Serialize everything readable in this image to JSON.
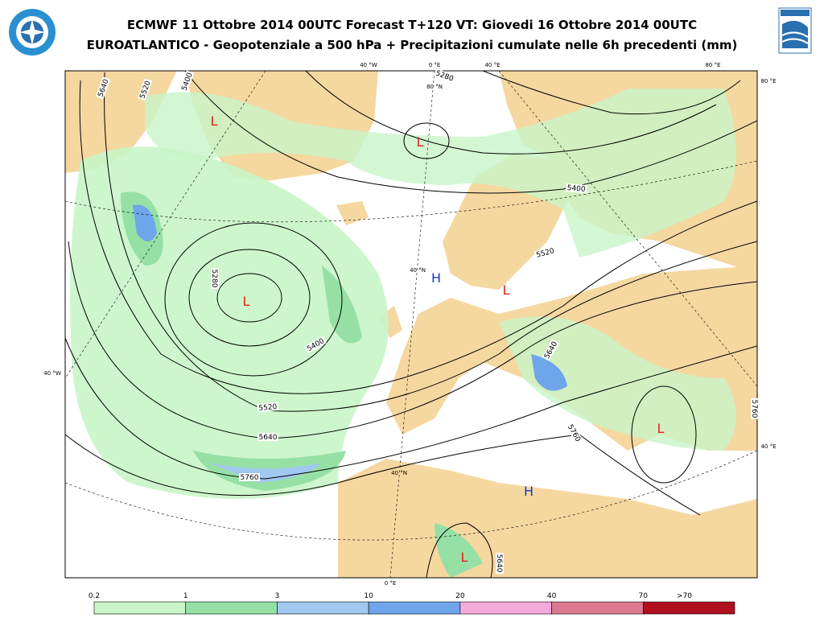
{
  "header": {
    "title_line1": "ECMWF 11 Ottobre 2014 00UTC Forecast T+120 VT: Giovedi 16 Ottobre 2014 00UTC",
    "title_line2": "EUROATLANTICO - Geopotenziale a 500 hPa + Precipitazioni cumulate nelle 6h precedenti (mm)"
  },
  "map": {
    "graticule_labels": [
      "40 °W",
      "0 °E",
      "40 °E",
      "80 °E",
      "80 °E",
      "80 °N",
      "40 °N",
      "40 °W",
      "40 °E",
      "40 °N",
      "0 °E"
    ],
    "contour_labels": [
      "5640",
      "5520",
      "5400",
      "5280",
      "5400",
      "5520",
      "5280",
      "5400",
      "5520",
      "5640",
      "5760",
      "5640",
      "5760",
      "5760",
      "5640"
    ],
    "pressure_centers": [
      "L",
      "L",
      "L",
      "H",
      "L",
      "L",
      "H",
      "L"
    ]
  },
  "legend": {
    "labels": [
      "0.2",
      "1",
      "3",
      "10",
      "20",
      "40",
      "70",
      ">70"
    ],
    "colors": [
      "#c8f5c8",
      "#96e0a5",
      "#a0c8f0",
      "#6ea5eb",
      "#f5aadc",
      "#dc788f",
      "#b00f1e"
    ]
  }
}
